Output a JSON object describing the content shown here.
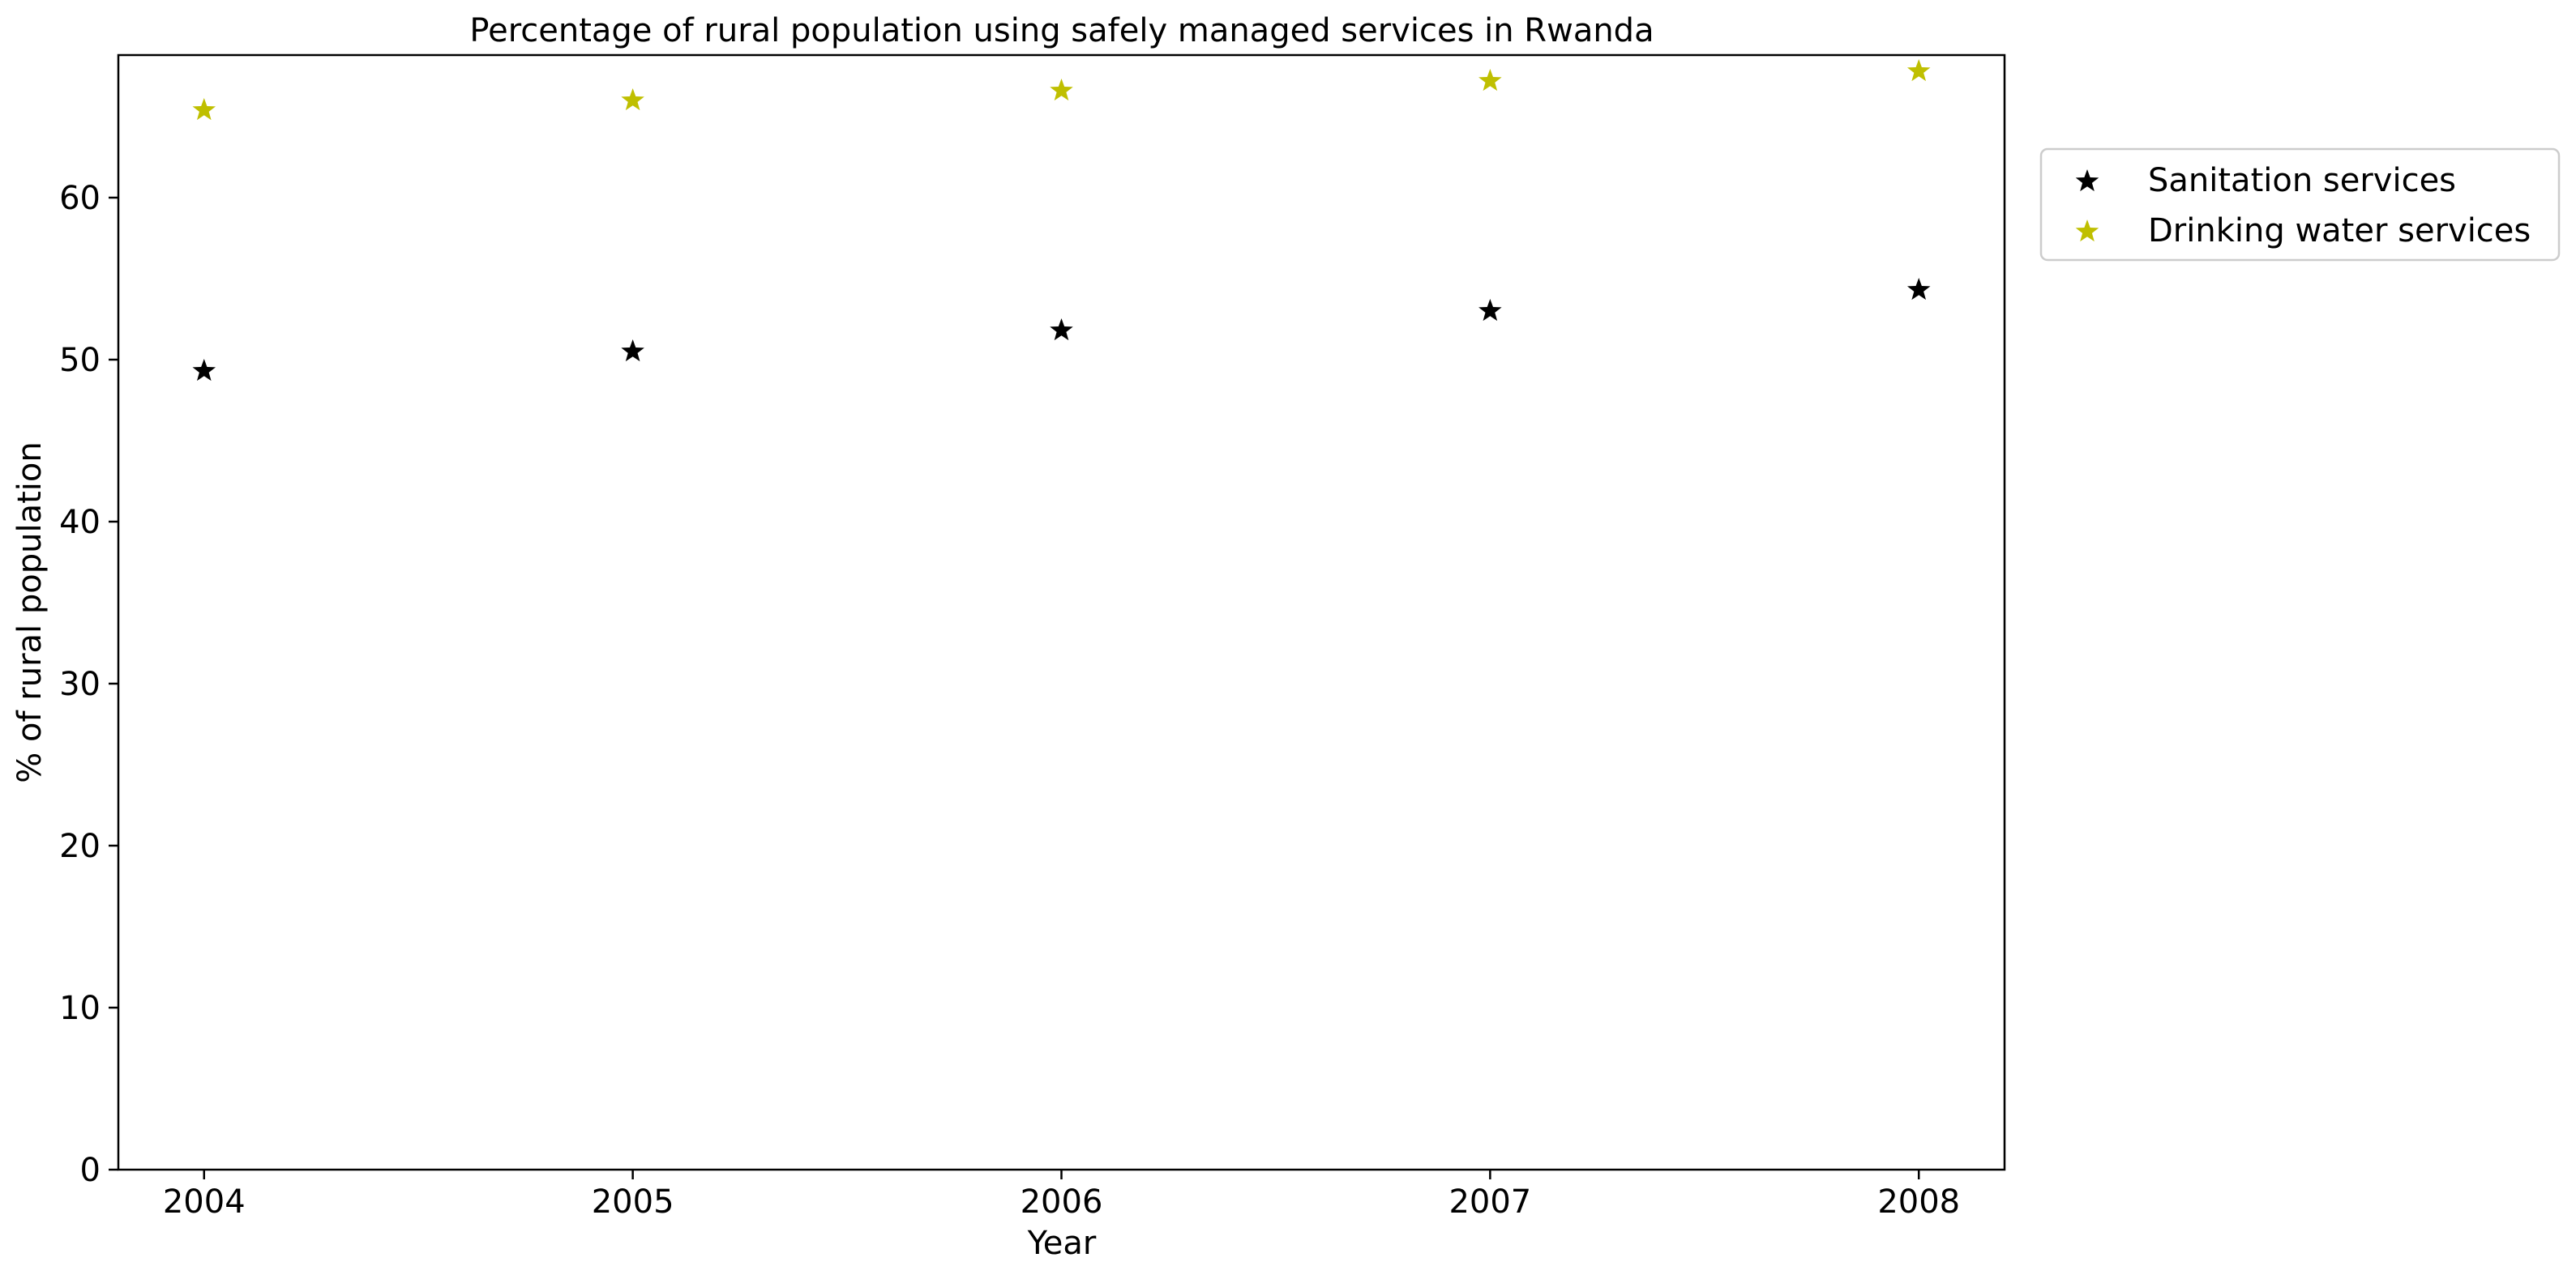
{
  "chart_data": {
    "type": "scatter",
    "title": "Percentage of rural population using safely managed services in Rwanda",
    "xlabel": "Year",
    "ylabel": "% of rural population",
    "x": [
      "2004",
      "2005",
      "2006",
      "2007",
      "2008"
    ],
    "xlim": [
      2003.8,
      2008.2
    ],
    "ylim": [
      0,
      68.8
    ],
    "yticks": [
      0,
      10,
      20,
      30,
      40,
      50,
      60
    ],
    "grid": false,
    "legend_position": "outside right, top",
    "marker": "star",
    "series": [
      {
        "name": "Sanitation services",
        "color": "#000000",
        "values": [
          49.3,
          50.5,
          51.8,
          53.0,
          54.3
        ]
      },
      {
        "name": "Drinking water services",
        "color": "#bfbf00",
        "values": [
          65.4,
          66.0,
          66.6,
          67.2,
          67.8
        ]
      }
    ]
  }
}
